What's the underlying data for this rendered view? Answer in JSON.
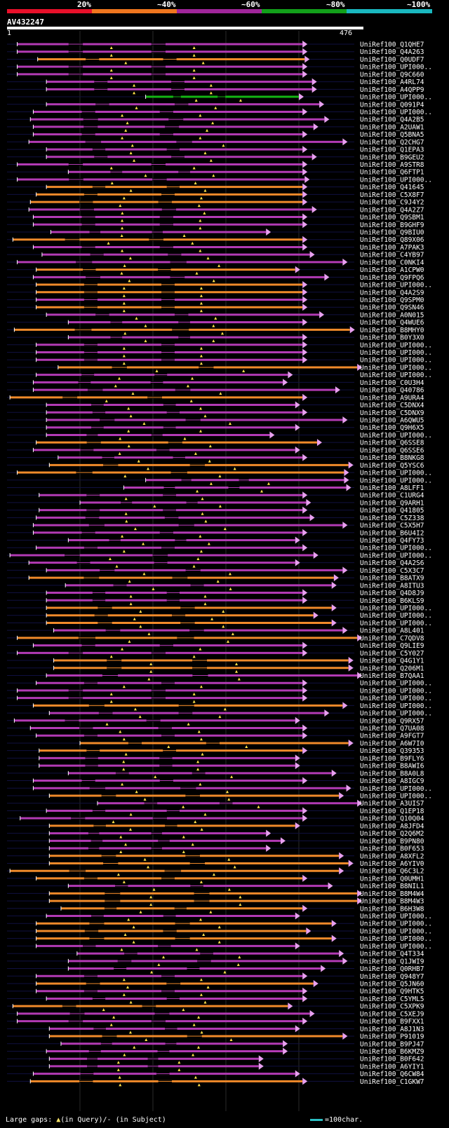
{
  "query": {
    "name": "AV432247",
    "start": "1",
    "end": "476",
    "length": 476
  },
  "legend": [
    {
      "label": "20%",
      "color": "#e8102a"
    },
    {
      "label": "~40%",
      "color": "#f0761e"
    },
    {
      "label": "~60%",
      "color": "#a0259a"
    },
    {
      "label": "~80%",
      "color": "#12a01a"
    },
    {
      "label": "~100%",
      "color": "#1ab8c0"
    }
  ],
  "colors": {
    "orange": "#f08a2a",
    "purple": "#b23ab4",
    "green": "#14b414",
    "arrow": "#e8a0f0",
    "gap": "#ffe04a",
    "thin": "#b060b0",
    "grid": "#2a2a2a"
  },
  "hits": [
    {
      "label": "UniRef100_Q1QHE7",
      "s": 14,
      "e": 405,
      "c": "purple"
    },
    {
      "label": "UniRef100_Q4A263",
      "s": 14,
      "e": 405,
      "c": "purple"
    },
    {
      "label": "UniRef100_Q0UDF7",
      "s": 42,
      "e": 408,
      "c": "orange"
    },
    {
      "label": "UniRef100_UPI000..",
      "s": 14,
      "e": 405,
      "c": "purple"
    },
    {
      "label": "UniRef100_Q9C660",
      "s": 14,
      "e": 405,
      "c": "purple"
    },
    {
      "label": "UniRef100_A4RL74",
      "s": 54,
      "e": 418,
      "c": "purple"
    },
    {
      "label": "UniRef100_A4QPP9",
      "s": 54,
      "e": 418,
      "c": "purple"
    },
    {
      "label": "UniRef100_UPI000..",
      "s": 190,
      "e": 400,
      "c": "green"
    },
    {
      "label": "UniRef100_Q091P4",
      "s": 54,
      "e": 428,
      "c": "purple"
    },
    {
      "label": "UniRef100_UPI000..",
      "s": 36,
      "e": 405,
      "c": "purple"
    },
    {
      "label": "UniRef100_Q4A2B5",
      "s": 32,
      "e": 435,
      "c": "purple"
    },
    {
      "label": "UniRef100_A2UAW1",
      "s": 36,
      "e": 420,
      "c": "purple"
    },
    {
      "label": "UniRef100_Q5BNA5",
      "s": 36,
      "e": 405,
      "c": "purple"
    },
    {
      "label": "UniRef100_Q2CHG7",
      "s": 30,
      "e": 460,
      "c": "purple"
    },
    {
      "label": "UniRef100_Q1EPA3",
      "s": 54,
      "e": 405,
      "c": "purple"
    },
    {
      "label": "UniRef100_B9GEU2",
      "s": 54,
      "e": 418,
      "c": "purple"
    },
    {
      "label": "UniRef100_A9STR8",
      "s": 14,
      "e": 405,
      "c": "purple"
    },
    {
      "label": "UniRef100_Q6FTP1",
      "s": 84,
      "e": 405,
      "c": "purple"
    },
    {
      "label": "UniRef100_UPI000..",
      "s": 14,
      "e": 408,
      "c": "purple"
    },
    {
      "label": "UniRef100_Q41645",
      "s": 54,
      "e": 405,
      "c": "orange"
    },
    {
      "label": "UniRef100_C5X8F7",
      "s": 40,
      "e": 405,
      "c": "orange"
    },
    {
      "label": "UniRef100_C9J4Y2",
      "s": 32,
      "e": 405,
      "c": "orange"
    },
    {
      "label": "UniRef100_Q4A2Z7",
      "s": 30,
      "e": 418,
      "c": "purple"
    },
    {
      "label": "UniRef100_Q9SBM1",
      "s": 36,
      "e": 405,
      "c": "purple"
    },
    {
      "label": "UniRef100_B9GHF9",
      "s": 36,
      "e": 405,
      "c": "purple"
    },
    {
      "label": "UniRef100_Q9BIU0",
      "s": 60,
      "e": 355,
      "c": "purple"
    },
    {
      "label": "UniRef100_Q89X06",
      "s": 8,
      "e": 405,
      "c": "orange"
    },
    {
      "label": "UniRef100_A7PAK3",
      "s": 36,
      "e": 405,
      "c": "purple"
    },
    {
      "label": "UniRef100_C4YB97",
      "s": 48,
      "e": 415,
      "c": "purple"
    },
    {
      "label": "UniRef100_C0NKI4",
      "s": 14,
      "e": 460,
      "c": "purple"
    },
    {
      "label": "UniRef100_A1CPW0",
      "s": 40,
      "e": 395,
      "c": "orange"
    },
    {
      "label": "UniRef100_Q9FPQ6",
      "s": 36,
      "e": 435,
      "c": "purple"
    },
    {
      "label": "UniRef100_UPI000..",
      "s": 40,
      "e": 405,
      "c": "orange"
    },
    {
      "label": "UniRef100_Q4A2S9",
      "s": 40,
      "e": 405,
      "c": "orange"
    },
    {
      "label": "UniRef100_Q9SPM0",
      "s": 40,
      "e": 405,
      "c": "purple"
    },
    {
      "label": "UniRef100_Q9SN46",
      "s": 40,
      "e": 405,
      "c": "orange"
    },
    {
      "label": "UniRef100_A0N015",
      "s": 54,
      "e": 428,
      "c": "purple"
    },
    {
      "label": "UniRef100_Q4WUE6",
      "s": 84,
      "e": 405,
      "c": "purple"
    },
    {
      "label": "UniRef100_B8MHY0",
      "s": 10,
      "e": 470,
      "c": "orange"
    },
    {
      "label": "UniRef100_B0Y3X0",
      "s": 84,
      "e": 405,
      "c": "purple"
    },
    {
      "label": "UniRef100_UPI000..",
      "s": 40,
      "e": 405,
      "c": "purple"
    },
    {
      "label": "UniRef100_UPI000..",
      "s": 40,
      "e": 405,
      "c": "purple"
    },
    {
      "label": "UniRef100_UPI000..",
      "s": 40,
      "e": 405,
      "c": "purple"
    },
    {
      "label": "UniRef100_UPI000..",
      "s": 70,
      "e": 480,
      "c": "orange"
    },
    {
      "label": "UniRef100_UPI000..",
      "s": 40,
      "e": 385,
      "c": "purple"
    },
    {
      "label": "UniRef100_C0U3H4",
      "s": 36,
      "e": 378,
      "c": "purple"
    },
    {
      "label": "UniRef100_Q40786",
      "s": 36,
      "e": 450,
      "c": "purple"
    },
    {
      "label": "UniRef100_A9URA4",
      "s": 4,
      "e": 405,
      "c": "orange"
    },
    {
      "label": "UniRef100_C5DNX4",
      "s": 54,
      "e": 395,
      "c": "purple"
    },
    {
      "label": "UniRef100_C5DNX9",
      "s": 54,
      "e": 405,
      "c": "purple"
    },
    {
      "label": "UniRef100_A6QWU5",
      "s": 54,
      "e": 460,
      "c": "purple"
    },
    {
      "label": "UniRef100_Q9H6X5",
      "s": 54,
      "e": 395,
      "c": "purple"
    },
    {
      "label": "UniRef100_UPI000..",
      "s": 54,
      "e": 360,
      "c": "purple"
    },
    {
      "label": "UniRef100_Q6SSE8",
      "s": 40,
      "e": 425,
      "c": "orange"
    },
    {
      "label": "UniRef100_Q6SSE6",
      "s": 36,
      "e": 395,
      "c": "purple"
    },
    {
      "label": "UniRef100_B8NKG8",
      "s": 70,
      "e": 405,
      "c": "purple"
    },
    {
      "label": "UniRef100_Q5YSC6",
      "s": 58,
      "e": 468,
      "c": "orange"
    },
    {
      "label": "UniRef100_UPI000..",
      "s": 14,
      "e": 462,
      "c": "orange"
    },
    {
      "label": "UniRef100_UPI000..",
      "s": 190,
      "e": 462,
      "c": "purple"
    },
    {
      "label": "UniRef100_A8LFF1",
      "s": 160,
      "e": 465,
      "c": "purple"
    },
    {
      "label": "UniRef100_C1URG4",
      "s": 44,
      "e": 405,
      "c": "purple"
    },
    {
      "label": "UniRef100_Q9ARH1",
      "s": 100,
      "e": 410,
      "c": "purple"
    },
    {
      "label": "UniRef100_Q41805",
      "s": 44,
      "e": 405,
      "c": "purple"
    },
    {
      "label": "UniRef100_C5Z338",
      "s": 40,
      "e": 415,
      "c": "purple"
    },
    {
      "label": "UniRef100_C5X5H7",
      "s": 36,
      "e": 460,
      "c": "purple"
    },
    {
      "label": "UniRef100_B6U4I2",
      "s": 36,
      "e": 405,
      "c": "purple"
    },
    {
      "label": "UniRef100_Q4FY73",
      "s": 84,
      "e": 395,
      "c": "purple"
    },
    {
      "label": "UniRef100_UPI000..",
      "s": 40,
      "e": 405,
      "c": "purple"
    },
    {
      "label": "UniRef100_UPI000..",
      "s": 4,
      "e": 420,
      "c": "purple"
    },
    {
      "label": "UniRef100_Q4A2S6",
      "s": 30,
      "e": 395,
      "c": "purple"
    },
    {
      "label": "UniRef100_C5X3C7",
      "s": 54,
      "e": 460,
      "c": "purple"
    },
    {
      "label": "UniRef100_B8ATX9",
      "s": 30,
      "e": 448,
      "c": "orange"
    },
    {
      "label": "UniRef100_A8ITU3",
      "s": 80,
      "e": 445,
      "c": "purple"
    },
    {
      "label": "UniRef100_Q4D8J9",
      "s": 54,
      "e": 405,
      "c": "purple"
    },
    {
      "label": "UniRef100_B6KLS9",
      "s": 54,
      "e": 405,
      "c": "purple"
    },
    {
      "label": "UniRef100_UPI000..",
      "s": 54,
      "e": 445,
      "c": "orange"
    },
    {
      "label": "UniRef100_UPI000..",
      "s": 54,
      "e": 420,
      "c": "orange"
    },
    {
      "label": "UniRef100_UPI000..",
      "s": 54,
      "e": 445,
      "c": "orange"
    },
    {
      "label": "UniRef100_A8L401",
      "s": 64,
      "e": 460,
      "c": "purple"
    },
    {
      "label": "UniRef100_C7QDV8",
      "s": 14,
      "e": 480,
      "c": "orange"
    },
    {
      "label": "UniRef100_Q9LIE9",
      "s": 36,
      "e": 405,
      "c": "purple"
    },
    {
      "label": "UniRef100_C5Y027",
      "s": 14,
      "e": 405,
      "c": "purple"
    },
    {
      "label": "UniRef100_Q4G1Y1",
      "s": 64,
      "e": 468,
      "c": "orange"
    },
    {
      "label": "UniRef100_Q206M1",
      "s": 64,
      "e": 468,
      "c": "orange"
    },
    {
      "label": "UniRef100_B7QAA1",
      "s": 54,
      "e": 480,
      "c": "purple"
    },
    {
      "label": "UniRef100_UPI000..",
      "s": 40,
      "e": 405,
      "c": "purple"
    },
    {
      "label": "UniRef100_UPI000..",
      "s": 14,
      "e": 405,
      "c": "purple"
    },
    {
      "label": "UniRef100_UPI000..",
      "s": 14,
      "e": 405,
      "c": "purple"
    },
    {
      "label": "UniRef100_UPI000..",
      "s": 36,
      "e": 460,
      "c": "orange"
    },
    {
      "label": "UniRef100_UPI000..",
      "s": 58,
      "e": 435,
      "c": "purple"
    },
    {
      "label": "UniRef100_Q9RX57",
      "s": 10,
      "e": 395,
      "c": "purple"
    },
    {
      "label": "UniRef100_Q7UA08",
      "s": 32,
      "e": 405,
      "c": "purple"
    },
    {
      "label": "UniRef100_A9FGT7",
      "s": 40,
      "e": 405,
      "c": "purple"
    },
    {
      "label": "UniRef100_A6W7I0",
      "s": 100,
      "e": 468,
      "c": "orange"
    },
    {
      "label": "UniRef100_Q39353",
      "s": 44,
      "e": 405,
      "c": "orange"
    },
    {
      "label": "UniRef100_B9FLY6",
      "s": 44,
      "e": 395,
      "c": "purple"
    },
    {
      "label": "UniRef100_B8AWI6",
      "s": 44,
      "e": 395,
      "c": "purple"
    },
    {
      "label": "UniRef100_B8A0L8",
      "s": 84,
      "e": 445,
      "c": "purple"
    },
    {
      "label": "UniRef100_A8IGC9",
      "s": 36,
      "e": 405,
      "c": "purple"
    },
    {
      "label": "UniRef100_UPI000..",
      "s": 36,
      "e": 465,
      "c": "purple"
    },
    {
      "label": "UniRef100_UPI000..",
      "s": 58,
      "e": 455,
      "c": "orange"
    },
    {
      "label": "UniRef100_A3UIS7",
      "s": 124,
      "e": 480,
      "c": "purple"
    },
    {
      "label": "UniRef100_Q1EP18",
      "s": 54,
      "e": 405,
      "c": "purple"
    },
    {
      "label": "UniRef100_Q10Q04",
      "s": 18,
      "e": 405,
      "c": "purple"
    },
    {
      "label": "UniRef100_A8JFD4",
      "s": 58,
      "e": 395,
      "c": "orange"
    },
    {
      "label": "UniRef100_Q2Q6M2",
      "s": 58,
      "e": 355,
      "c": "purple"
    },
    {
      "label": "UniRef100_B9PN80",
      "s": 58,
      "e": 375,
      "c": "purple"
    },
    {
      "label": "UniRef100_B0F653",
      "s": 58,
      "e": 355,
      "c": "purple"
    },
    {
      "label": "UniRef100_A8XFL2",
      "s": 58,
      "e": 455,
      "c": "orange"
    },
    {
      "label": "UniRef100_A6YIV0",
      "s": 58,
      "e": 468,
      "c": "orange"
    },
    {
      "label": "UniRef100_Q6C3L2",
      "s": 4,
      "e": 455,
      "c": "orange"
    },
    {
      "label": "UniRef100_Q0UMH1",
      "s": 40,
      "e": 405,
      "c": "orange"
    },
    {
      "label": "UniRef100_B8NIL1",
      "s": 84,
      "e": 440,
      "c": "purple"
    },
    {
      "label": "UniRef100_B8M4W4",
      "s": 58,
      "e": 480,
      "c": "orange"
    },
    {
      "label": "UniRef100_B8M4W3",
      "s": 58,
      "e": 480,
      "c": "orange"
    },
    {
      "label": "UniRef100_B6H3W8",
      "s": 74,
      "e": 405,
      "c": "orange"
    },
    {
      "label": "UniRef100_UPI000..",
      "s": 54,
      "e": 395,
      "c": "purple"
    },
    {
      "label": "UniRef100_UPI000..",
      "s": 40,
      "e": 445,
      "c": "orange"
    },
    {
      "label": "UniRef100_UPI000..",
      "s": 40,
      "e": 410,
      "c": "orange"
    },
    {
      "label": "UniRef100_UPI000..",
      "s": 40,
      "e": 445,
      "c": "orange"
    },
    {
      "label": "UniRef100_UPI000..",
      "s": 40,
      "e": 395,
      "c": "purple"
    },
    {
      "label": "UniRef100_Q4T334",
      "s": 96,
      "e": 455,
      "c": "purple"
    },
    {
      "label": "UniRef100_Q1JWI9",
      "s": 84,
      "e": 460,
      "c": "purple"
    },
    {
      "label": "UniRef100_Q0RHB7",
      "s": 84,
      "e": 430,
      "c": "purple"
    },
    {
      "label": "UniRef100_Q948Y7",
      "s": 40,
      "e": 405,
      "c": "purple"
    },
    {
      "label": "UniRef100_Q5JN60",
      "s": 40,
      "e": 420,
      "c": "orange"
    },
    {
      "label": "UniRef100_Q9HTK5",
      "s": 40,
      "e": 405,
      "c": "purple"
    },
    {
      "label": "UniRef100_C5YML5",
      "s": 54,
      "e": 405,
      "c": "purple"
    },
    {
      "label": "UniRef100_C5XPK9",
      "s": 8,
      "e": 385,
      "c": "orange"
    },
    {
      "label": "UniRef100_C5XEJ9",
      "s": 14,
      "e": 415,
      "c": "purple"
    },
    {
      "label": "UniRef100_B9FXX1",
      "s": 14,
      "e": 405,
      "c": "purple"
    },
    {
      "label": "UniRef100_A8J1N3",
      "s": 58,
      "e": 395,
      "c": "purple"
    },
    {
      "label": "UniRef100_P91019",
      "s": 58,
      "e": 460,
      "c": "orange"
    },
    {
      "label": "UniRef100_B9PJ47",
      "s": 74,
      "e": 378,
      "c": "purple"
    },
    {
      "label": "UniRef100_B6KMZ9",
      "s": 54,
      "e": 378,
      "c": "purple"
    },
    {
      "label": "UniRef100_B0F642",
      "s": 58,
      "e": 345,
      "c": "purple"
    },
    {
      "label": "UniRef100_A6YIY1",
      "s": 58,
      "e": 345,
      "c": "purple"
    },
    {
      "label": "UniRef100_Q6CW84",
      "s": 36,
      "e": 395,
      "c": "purple"
    },
    {
      "label": "UniRef100_C1GKW7",
      "s": 32,
      "e": 405,
      "c": "orange"
    }
  ],
  "footer": {
    "gaps_prefix": "Large gaps: ",
    "in_query": "(in Query)/",
    "dash": "-",
    "in_subject": " (in Subject)",
    "scale_label": "=100char."
  }
}
